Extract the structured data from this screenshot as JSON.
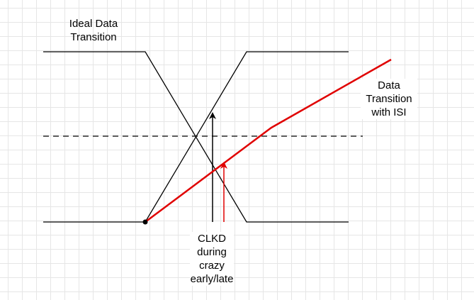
{
  "diagram": {
    "labels": {
      "ideal_transition": "Ideal Data\nTransition",
      "isi_transition": "Data\nTransition\nwith ISI",
      "clkd": "CLKD\nduring\ncrazy\nearly/late"
    },
    "colors": {
      "ideal_waveform": "#000000",
      "isi_waveform": "#e00000",
      "clock_arrow": "#000000",
      "clock_arrow_late": "#e00000",
      "threshold": "#000000",
      "grid": "#e6e6e6"
    }
  }
}
